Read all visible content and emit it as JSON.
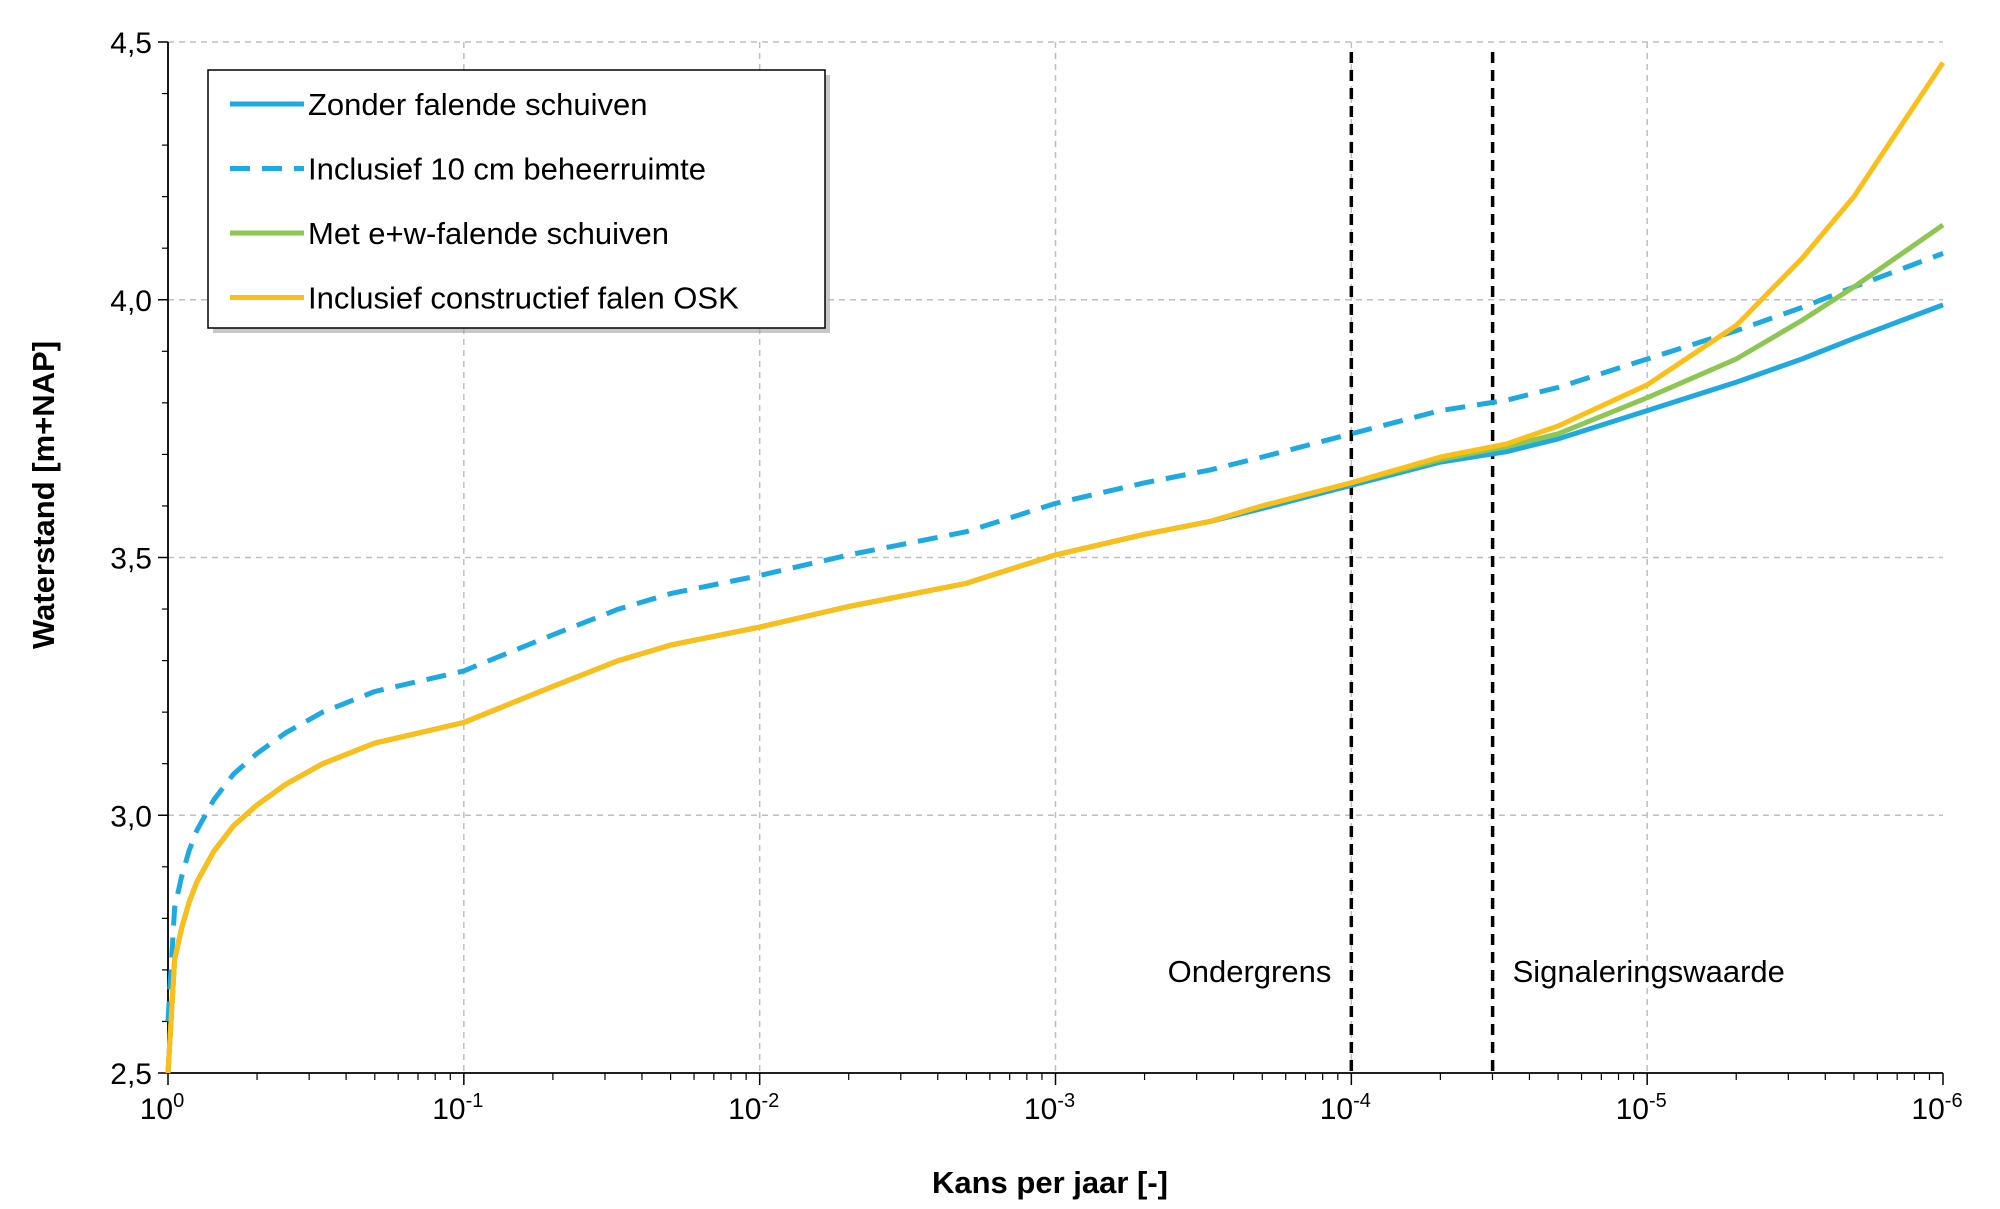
{
  "chart_data": {
    "type": "line",
    "title": "",
    "xlabel": "Kans per jaar [-]",
    "ylabel": "Waterstand [m+NAP]",
    "x_scale": "log",
    "x_reversed": true,
    "xlim": [
      1,
      1e-06
    ],
    "ylim": [
      2.5,
      4.5
    ],
    "grid": true,
    "legend_position": "top-left",
    "x_ticks": [
      {
        "base": "10",
        "exp": "0"
      },
      {
        "base": "10",
        "exp": "-1"
      },
      {
        "base": "10",
        "exp": "-2"
      },
      {
        "base": "10",
        "exp": "-3"
      },
      {
        "base": "10",
        "exp": "-4"
      },
      {
        "base": "10",
        "exp": "-5"
      },
      {
        "base": "10",
        "exp": "-6"
      }
    ],
    "y_ticks": [
      "2,5",
      "3,0",
      "3,5",
      "4,0",
      "4,5"
    ],
    "y_tick_values": [
      2.5,
      3.0,
      3.5,
      4.0,
      4.5
    ],
    "series": [
      {
        "name": "Zonder falende schuiven",
        "color": "#1EA9E1",
        "style": "solid",
        "x": [
          1,
          0.95,
          0.9,
          0.85,
          0.8,
          0.7,
          0.6,
          0.5,
          0.4,
          0.3,
          0.2,
          0.1,
          0.05,
          0.03,
          0.02,
          0.01,
          0.005,
          0.003,
          0.002,
          0.001,
          0.0005,
          0.0003,
          0.0002,
          0.0001,
          5e-05,
          3e-05,
          2e-05,
          1e-05,
          5e-06,
          3e-06,
          2e-06,
          1e-06
        ],
        "y": [
          2.5,
          2.72,
          2.78,
          2.83,
          2.87,
          2.93,
          2.98,
          3.02,
          3.06,
          3.1,
          3.14,
          3.18,
          3.25,
          3.3,
          3.33,
          3.365,
          3.405,
          3.43,
          3.45,
          3.505,
          3.545,
          3.57,
          3.595,
          3.64,
          3.685,
          3.705,
          3.73,
          3.785,
          3.84,
          3.885,
          3.925,
          3.99
        ]
      },
      {
        "name": "Inclusief 10 cm beheerruimte",
        "color": "#1EA9E1",
        "style": "dashed",
        "x": [
          1,
          0.95,
          0.9,
          0.85,
          0.8,
          0.7,
          0.6,
          0.5,
          0.4,
          0.3,
          0.2,
          0.1,
          0.05,
          0.03,
          0.02,
          0.01,
          0.005,
          0.003,
          0.002,
          0.001,
          0.0005,
          0.0003,
          0.0002,
          0.0001,
          5e-05,
          3e-05,
          2e-05,
          1e-05,
          5e-06,
          3e-06,
          2e-06,
          1e-06
        ],
        "y": [
          2.6,
          2.82,
          2.88,
          2.93,
          2.97,
          3.03,
          3.08,
          3.12,
          3.16,
          3.2,
          3.24,
          3.28,
          3.35,
          3.4,
          3.43,
          3.465,
          3.505,
          3.53,
          3.55,
          3.605,
          3.645,
          3.67,
          3.695,
          3.74,
          3.785,
          3.805,
          3.83,
          3.885,
          3.94,
          3.985,
          4.025,
          4.09
        ]
      },
      {
        "name": "Met e+w-falende schuiven",
        "color": "#8DC653",
        "style": "solid",
        "x": [
          1,
          0.95,
          0.9,
          0.85,
          0.8,
          0.7,
          0.6,
          0.5,
          0.4,
          0.3,
          0.2,
          0.1,
          0.05,
          0.03,
          0.02,
          0.01,
          0.005,
          0.003,
          0.002,
          0.001,
          0.0005,
          0.0003,
          0.0002,
          0.0001,
          5e-05,
          3e-05,
          2e-05,
          1e-05,
          5e-06,
          3e-06,
          2e-06,
          1e-06
        ],
        "y": [
          2.5,
          2.72,
          2.78,
          2.83,
          2.87,
          2.93,
          2.98,
          3.02,
          3.06,
          3.1,
          3.14,
          3.18,
          3.25,
          3.3,
          3.33,
          3.365,
          3.405,
          3.43,
          3.45,
          3.505,
          3.545,
          3.57,
          3.6,
          3.645,
          3.69,
          3.715,
          3.74,
          3.81,
          3.885,
          3.96,
          4.025,
          4.145
        ]
      },
      {
        "name": "Inclusief constructief falen OSK",
        "color": "#FBBF18",
        "style": "solid",
        "x": [
          1,
          0.95,
          0.9,
          0.85,
          0.8,
          0.7,
          0.6,
          0.5,
          0.4,
          0.3,
          0.2,
          0.1,
          0.05,
          0.03,
          0.02,
          0.01,
          0.005,
          0.003,
          0.002,
          0.001,
          0.0005,
          0.0003,
          0.0002,
          0.0001,
          5e-05,
          3e-05,
          2e-05,
          1e-05,
          5e-06,
          3e-06,
          2e-06,
          1e-06
        ],
        "y": [
          2.5,
          2.72,
          2.78,
          2.83,
          2.87,
          2.93,
          2.98,
          3.02,
          3.06,
          3.1,
          3.14,
          3.18,
          3.25,
          3.3,
          3.33,
          3.365,
          3.405,
          3.43,
          3.45,
          3.505,
          3.545,
          3.57,
          3.6,
          3.645,
          3.695,
          3.72,
          3.755,
          3.835,
          3.95,
          4.08,
          4.2,
          4.46
        ]
      }
    ],
    "reference_lines": [
      {
        "label": "Ondergrens",
        "x": 0.0001,
        "label_side": "left"
      },
      {
        "label": "Signaleringswaarde",
        "x": 3.33e-05,
        "label_side": "right"
      }
    ]
  }
}
